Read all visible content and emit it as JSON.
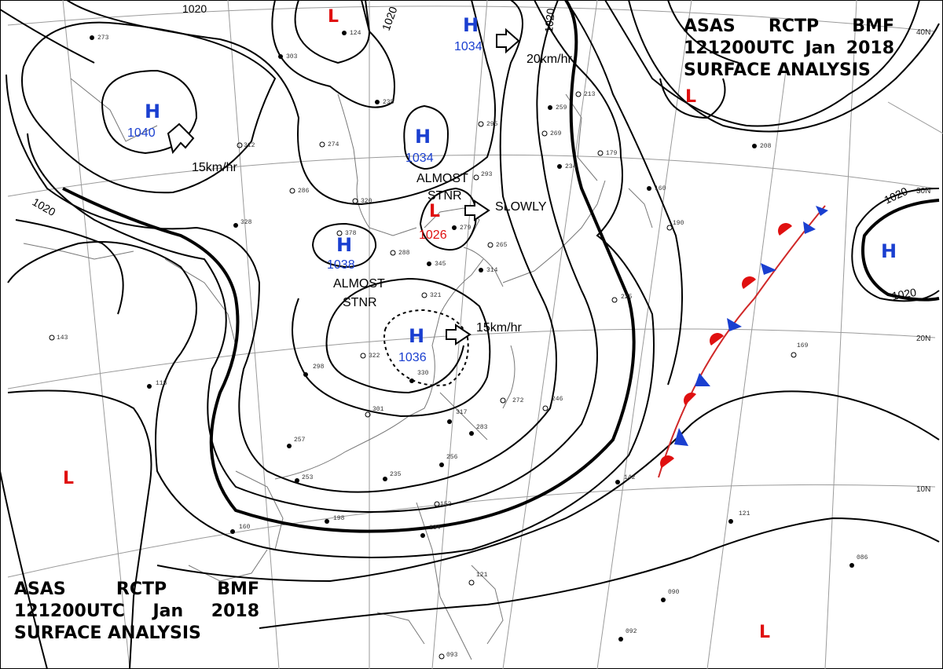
{
  "header": {
    "line1": [
      "ASAS",
      "RCTP",
      "BMF"
    ],
    "line2": [
      "121200UTC",
      "Jan",
      "2018"
    ],
    "line3": "SURFACE ANALYSIS"
  },
  "colors": {
    "high": "#1a3fd0",
    "low": "#e01010",
    "isobar": "#000000"
  },
  "isobar_label": "1020",
  "lat_labels": [
    "40N",
    "30N",
    "20N",
    "10N"
  ],
  "highs": [
    {
      "label": "H",
      "pressure": "1040"
    },
    {
      "label": "H",
      "pressure": "1034"
    },
    {
      "label": "H",
      "pressure": "1034"
    },
    {
      "label": "H",
      "pressure": "1038"
    },
    {
      "label": "H",
      "pressure": "1036"
    },
    {
      "label": "H",
      "pressure": ""
    }
  ],
  "lows": [
    {
      "label": "L",
      "pressure": "1026"
    },
    {
      "label": "L",
      "pressure": ""
    },
    {
      "label": "L",
      "pressure": ""
    },
    {
      "label": "L",
      "pressure": ""
    },
    {
      "label": "L",
      "pressure": ""
    }
  ],
  "motions": [
    {
      "text": "15km/hr"
    },
    {
      "text": "20km/hr"
    },
    {
      "text": "SLOWLY"
    },
    {
      "text": "15km/hr"
    }
  ],
  "notes": [
    {
      "line1": "ALMOST",
      "line2": "STNR"
    },
    {
      "line1": "ALMOST",
      "line2": "STNR"
    }
  ],
  "stations": [
    "273",
    "124",
    "303",
    "312",
    "274",
    "286",
    "320",
    "235",
    "295",
    "259",
    "213",
    "269",
    "234",
    "179",
    "160",
    "208",
    "378",
    "288",
    "345",
    "279",
    "265",
    "314",
    "321",
    "322",
    "330",
    "298",
    "301",
    "317",
    "283",
    "272",
    "246",
    "256",
    "235",
    "257",
    "253",
    "142",
    "198",
    "160",
    "152",
    "134",
    "121",
    "090",
    "092",
    "086",
    "225",
    "169",
    "190",
    "118",
    "143",
    "328",
    "293",
    "121",
    "093"
  ]
}
